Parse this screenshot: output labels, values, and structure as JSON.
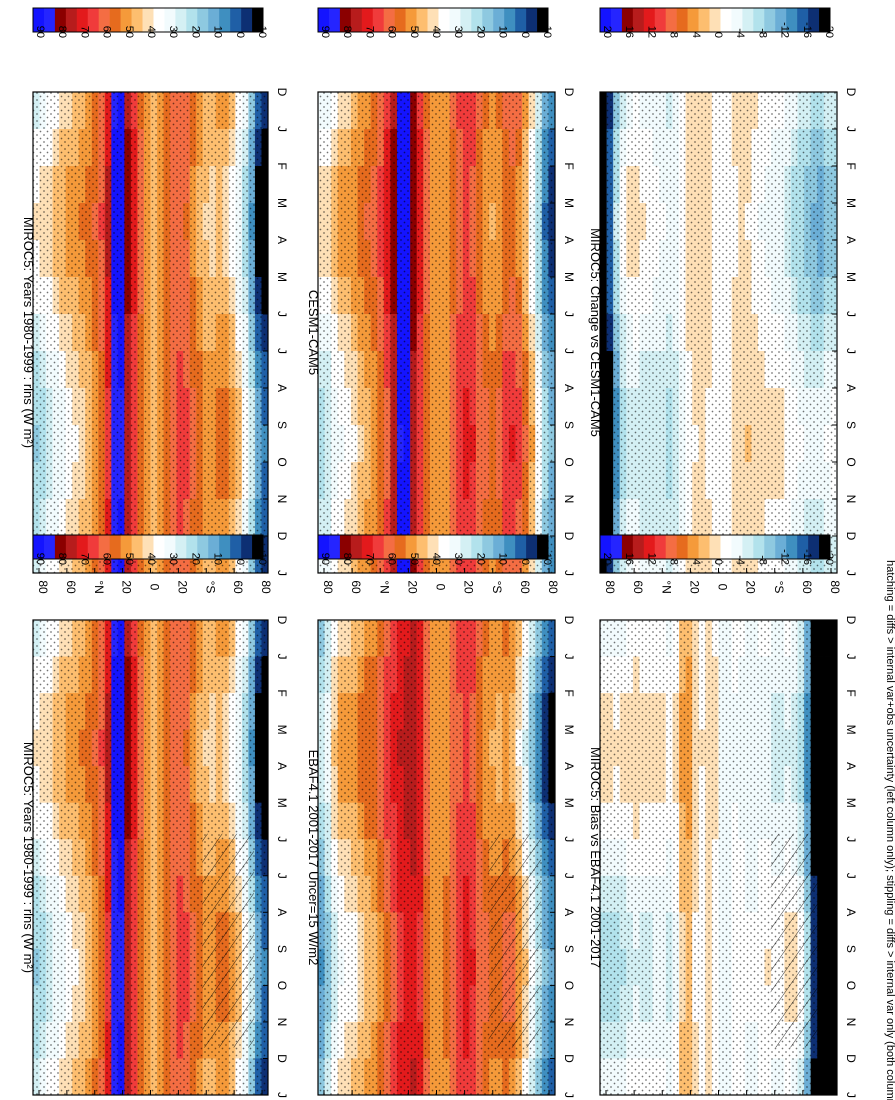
{
  "figure": {
    "footer": "hatching = diffs > internal var+obs uncertainty (left column only); stippling = diffs > internal var only (both columns)",
    "orientation": "rotated 90 degrees clockwise (months run top-to-bottom, latitude runs right-to-left)"
  },
  "chart_data": [
    {
      "type": "heatmap",
      "title": "MIROC5: Years 1980-1999 : rlns (W m²)",
      "months": [
        "D",
        "J",
        "F",
        "M",
        "A",
        "M",
        "J",
        "J",
        "A",
        "S",
        "O",
        "N",
        "D",
        "J"
      ],
      "lat_ticks": [
        "80",
        "60",
        "°N",
        "20",
        "0",
        "20",
        "°S",
        "60",
        "80"
      ],
      "colorbar_labels": [
        "90",
        "80",
        "70",
        "60",
        "50",
        "40",
        "30",
        "20",
        "10",
        "0",
        "-10"
      ],
      "colorbar_colors": [
        "#1414ff",
        "#2525ff",
        "#8b0000",
        "#b71c1c",
        "#e31a1c",
        "#f03b3b",
        "#f46d43",
        "#e66b1e",
        "#f59a3a",
        "#fdbe6f",
        "#fee0b6",
        "#ffffff",
        "#f2fbfd",
        "#d4f0f4",
        "#b2e2ec",
        "#8ec9e0",
        "#6baed6",
        "#3f8fc0",
        "#1f5fa6",
        "#0d2f73",
        "#000000"
      ],
      "profile_lat": [
        -85,
        -75,
        -65,
        -55,
        -45,
        -35,
        -25,
        -15,
        -5,
        5,
        15,
        25,
        35,
        45,
        55,
        65,
        75,
        85
      ],
      "profile_value": [
        -5,
        25,
        40,
        50,
        45,
        52,
        62,
        58,
        45,
        52,
        70,
        92,
        60,
        50,
        45,
        40,
        35,
        28
      ],
      "hatched": false,
      "stippled": true
    },
    {
      "type": "heatmap",
      "title": "CESM1-CAM5",
      "months": [
        "D",
        "J",
        "F",
        "M",
        "A",
        "M",
        "J",
        "J",
        "A",
        "S",
        "O",
        "N",
        "D",
        "J"
      ],
      "lat_ticks": [
        "80",
        "60",
        "°N",
        "20",
        "0",
        "20",
        "°S",
        "60",
        "80"
      ],
      "colorbar_labels": [
        "90",
        "80",
        "70",
        "60",
        "50",
        "40",
        "30",
        "20",
        "10",
        "0",
        "-10"
      ],
      "colorbar_colors": [
        "#1414ff",
        "#2525ff",
        "#8b0000",
        "#b71c1c",
        "#e31a1c",
        "#f03b3b",
        "#f46d43",
        "#e66b1e",
        "#f59a3a",
        "#fdbe6f",
        "#fee0b6",
        "#ffffff",
        "#f2fbfd",
        "#d4f0f4",
        "#b2e2ec",
        "#8ec9e0",
        "#6baed6",
        "#3f8fc0",
        "#1f5fa6",
        "#0d2f73",
        "#000000"
      ],
      "profile_lat": [
        -85,
        -75,
        -65,
        -55,
        -45,
        -35,
        -25,
        -15,
        -5,
        5,
        15,
        25,
        35,
        45,
        55,
        65,
        75,
        85
      ],
      "profile_value": [
        5,
        35,
        55,
        62,
        50,
        55,
        66,
        60,
        48,
        52,
        70,
        95,
        68,
        55,
        50,
        42,
        40,
        30
      ],
      "hatched": false,
      "stippled": true
    },
    {
      "type": "heatmap",
      "title": "MIROC5: Change vs CESM1-CAM5",
      "months": [
        "D",
        "J",
        "F",
        "M",
        "A",
        "M",
        "J",
        "J",
        "A",
        "S",
        "O",
        "N",
        "D",
        "J"
      ],
      "lat_ticks": [
        "80",
        "60",
        "°N",
        "20",
        "0",
        "20",
        "°S",
        "60",
        "80"
      ],
      "colorbar_labels": [
        "20",
        "16",
        "12",
        "8",
        "4",
        "0",
        "-4",
        "-8",
        "-12",
        "-16",
        "-20"
      ],
      "colorbar_colors": [
        "#1414ff",
        "#2525ff",
        "#8b0000",
        "#b71c1c",
        "#e31a1c",
        "#f03b3b",
        "#f46d43",
        "#e66b1e",
        "#f59a3a",
        "#fdbe6f",
        "#fee0b6",
        "#ffffff",
        "#f2fbfd",
        "#d4f0f4",
        "#b2e2ec",
        "#8ec9e0",
        "#6baed6",
        "#3f8fc0",
        "#1f5fa6",
        "#0d2f73",
        "#000000"
      ],
      "profile_lat": [
        -85,
        -75,
        -65,
        -55,
        -45,
        -35,
        -25,
        -15,
        -5,
        5,
        15,
        25,
        35,
        45,
        55,
        65,
        75,
        85
      ],
      "profile_value": [
        -6,
        -8,
        -6,
        -4,
        -2,
        -2,
        0,
        0,
        -2,
        -1,
        0,
        -1,
        -6,
        -4,
        -4,
        -2,
        -6,
        -22
      ],
      "hatched": false,
      "stippled": true
    },
    {
      "type": "heatmap",
      "title": "MIROC5: Years 1980-1999 : rlns (W m²)",
      "months": [
        "D",
        "J",
        "F",
        "M",
        "A",
        "M",
        "J",
        "J",
        "A",
        "S",
        "O",
        "N",
        "D",
        "J"
      ],
      "lat_ticks": [
        "80",
        "60",
        "°N",
        "20",
        "0",
        "20",
        "°S",
        "60",
        "80"
      ],
      "colorbar_labels": [
        "90",
        "80",
        "70",
        "60",
        "50",
        "40",
        "30",
        "20",
        "10",
        "0",
        "-10"
      ],
      "colorbar_colors": [
        "#1414ff",
        "#2525ff",
        "#8b0000",
        "#b71c1c",
        "#e31a1c",
        "#f03b3b",
        "#f46d43",
        "#e66b1e",
        "#f59a3a",
        "#fdbe6f",
        "#fee0b6",
        "#ffffff",
        "#f2fbfd",
        "#d4f0f4",
        "#b2e2ec",
        "#8ec9e0",
        "#6baed6",
        "#3f8fc0",
        "#1f5fa6",
        "#0d2f73",
        "#000000"
      ],
      "profile_lat": [
        -85,
        -75,
        -65,
        -55,
        -45,
        -35,
        -25,
        -15,
        -5,
        5,
        15,
        25,
        35,
        45,
        55,
        65,
        75,
        85
      ],
      "profile_value": [
        -5,
        25,
        40,
        50,
        45,
        52,
        62,
        58,
        45,
        52,
        70,
        92,
        60,
        50,
        45,
        40,
        35,
        28
      ],
      "hatched": true,
      "stippled": true
    },
    {
      "type": "heatmap",
      "title": "EBAF4.1 2001-2017 Uncer=15 W/m2",
      "months": [
        "D",
        "J",
        "F",
        "M",
        "A",
        "M",
        "J",
        "J",
        "A",
        "S",
        "O",
        "N",
        "D",
        "J"
      ],
      "lat_ticks": [
        "80",
        "60",
        "°N",
        "20",
        "0",
        "20",
        "°S",
        "60",
        "80"
      ],
      "colorbar_labels": [
        "90",
        "80",
        "70",
        "60",
        "50",
        "40",
        "30",
        "20",
        "10",
        "0",
        "-10"
      ],
      "colorbar_colors": [
        "#1414ff",
        "#2525ff",
        "#8b0000",
        "#b71c1c",
        "#e31a1c",
        "#f03b3b",
        "#f46d43",
        "#e66b1e",
        "#f59a3a",
        "#fdbe6f",
        "#fee0b6",
        "#ffffff",
        "#f2fbfd",
        "#d4f0f4",
        "#b2e2ec",
        "#8ec9e0",
        "#6baed6",
        "#3f8fc0",
        "#1f5fa6",
        "#0d2f73",
        "#000000"
      ],
      "profile_lat": [
        -85,
        -75,
        -65,
        -55,
        -45,
        -35,
        -25,
        -15,
        -5,
        5,
        15,
        25,
        35,
        45,
        55,
        65,
        75,
        85
      ],
      "profile_value": [
        0,
        20,
        40,
        55,
        50,
        55,
        66,
        62,
        48,
        52,
        72,
        70,
        62,
        52,
        48,
        42,
        40,
        18
      ],
      "hatched": true,
      "stippled": true
    },
    {
      "type": "heatmap",
      "title": "MIROC5: Bias vs EBAF4.1 2001-2017",
      "months": [
        "D",
        "J",
        "F",
        "M",
        "A",
        "M",
        "J",
        "J",
        "A",
        "S",
        "O",
        "N",
        "D",
        "J"
      ],
      "lat_ticks": [
        "80",
        "60",
        "°N",
        "20",
        "0",
        "20",
        "°S",
        "60",
        "80"
      ],
      "colorbar_labels": [
        "20",
        "16",
        "12",
        "8",
        "4",
        "0",
        "-4",
        "-8",
        "-12",
        "-16",
        "-20"
      ],
      "colorbar_colors": [
        "#1414ff",
        "#2525ff",
        "#8b0000",
        "#b71c1c",
        "#e31a1c",
        "#f03b3b",
        "#f46d43",
        "#e66b1e",
        "#f59a3a",
        "#fdbe6f",
        "#fee0b6",
        "#ffffff",
        "#f2fbfd",
        "#d4f0f4",
        "#b2e2ec",
        "#8ec9e0",
        "#6baed6",
        "#3f8fc0",
        "#1f5fa6",
        "#0d2f73",
        "#000000"
      ],
      "profile_lat": [
        -85,
        -75,
        -65,
        -55,
        -45,
        -35,
        -25,
        -15,
        -5,
        5,
        15,
        25,
        35,
        45,
        55,
        65,
        75,
        85
      ],
      "profile_value": [
        -22,
        -24,
        -6,
        -2,
        -4,
        -2,
        -4,
        -2,
        -4,
        0,
        -2,
        4,
        -4,
        -2,
        -3,
        -2,
        -4,
        -4
      ],
      "hatched": true,
      "stippled": true
    }
  ]
}
